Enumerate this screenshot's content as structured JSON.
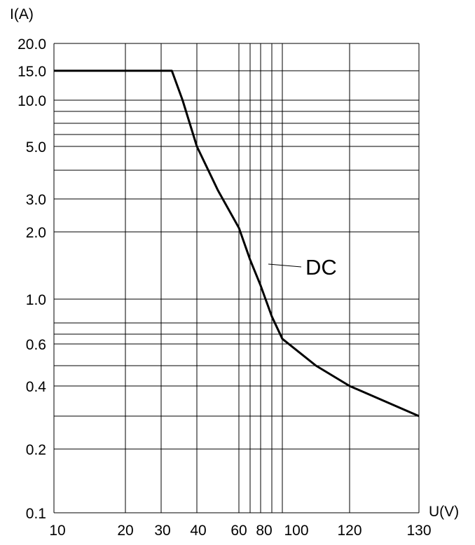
{
  "chart_data": {
    "type": "line",
    "title": "",
    "ylabel": "I(A)",
    "xlabel": "U(V)",
    "y_scale": "log",
    "x_scale": "custom (labels at gridlines)",
    "grid": true,
    "x_tick_labels": [
      "10",
      "20",
      "30",
      "40",
      "60",
      "80",
      "100",
      "120",
      "130"
    ],
    "y_tick_labels": [
      "20.0",
      "15.0",
      "10.0",
      "5.0",
      "3.0",
      "2.0",
      "1.0",
      "0.6",
      "0.4",
      "0.2",
      "0.1"
    ],
    "y_gridlines": [
      20,
      15,
      10,
      9,
      8,
      7,
      6,
      5,
      4,
      3,
      2,
      1,
      0.8,
      0.7,
      0.6,
      0.5,
      0.4,
      0.3,
      0.2,
      0.1
    ],
    "ylim": [
      0.1,
      20
    ],
    "series": [
      {
        "name": "DC",
        "points": [
          {
            "x": 10,
            "y": 15
          },
          {
            "x": 33,
            "y": 15
          },
          {
            "x": 36,
            "y": 10
          },
          {
            "x": 40,
            "y": 6
          },
          {
            "x": 50,
            "y": 3.5
          },
          {
            "x": 60,
            "y": 2.1
          },
          {
            "x": 70,
            "y": 1.5
          },
          {
            "x": 80,
            "y": 1.15
          },
          {
            "x": 90,
            "y": 0.85
          },
          {
            "x": 100,
            "y": 0.65
          },
          {
            "x": 110,
            "y": 0.5
          },
          {
            "x": 120,
            "y": 0.4
          },
          {
            "x": 130,
            "y": 0.3
          }
        ]
      }
    ],
    "annotation": "DC",
    "legend": "none"
  }
}
